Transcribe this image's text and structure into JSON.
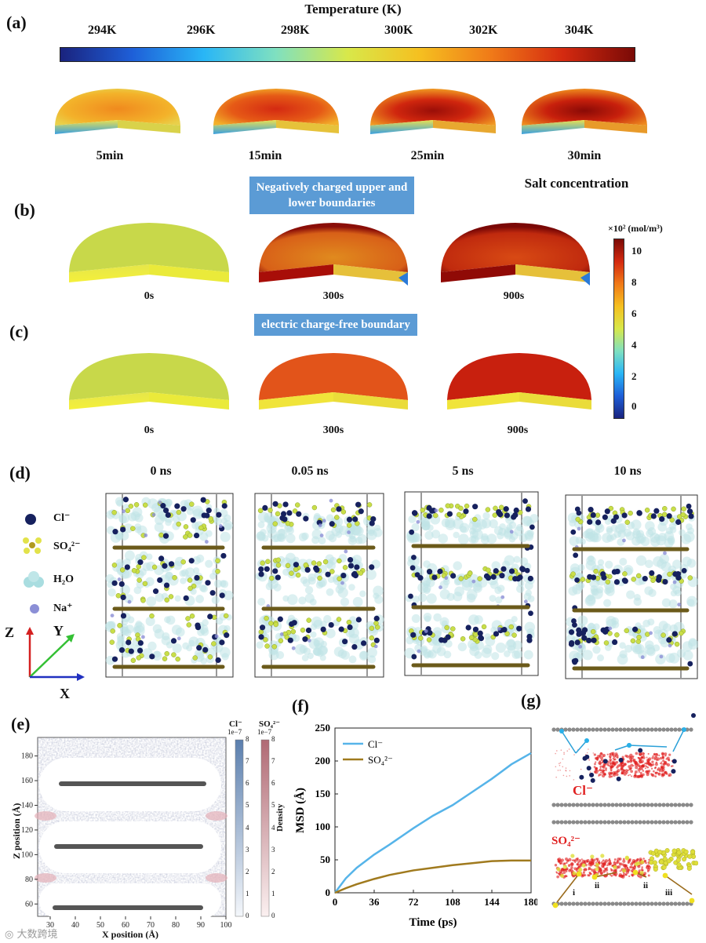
{
  "panel_a": {
    "label": "(a)",
    "colorbar_title": "Temperature (K)",
    "colorbar_ticks": [
      "294K",
      "296K",
      "298K",
      "300K",
      "302K",
      "304K"
    ],
    "times": [
      "5min",
      "15min",
      "25min",
      "30min"
    ]
  },
  "panel_b": {
    "label": "(b)",
    "condition": "Negatively charged upper and lower boundaries",
    "times": [
      "0s",
      "300s",
      "900s"
    ]
  },
  "panel_c": {
    "label": "(c)",
    "condition": "electric charge-free boundary",
    "times": [
      "0s",
      "300s",
      "900s"
    ]
  },
  "salt_colorbar": {
    "title": "Salt concentration",
    "unit": "×10² (mol/m³)",
    "ticks": [
      "10",
      "8",
      "6",
      "4",
      "2",
      "0"
    ]
  },
  "panel_d": {
    "label": "(d)",
    "times": [
      "0 ns",
      "0.05 ns",
      "5 ns",
      "10 ns"
    ],
    "legend": [
      {
        "name": "Cl⁻",
        "color": "#16215e"
      },
      {
        "name": "SO₄²⁻",
        "color": "#d8d84a"
      },
      {
        "name": "H₂O",
        "color": "#a9dde0"
      },
      {
        "name": "Na⁺",
        "color": "#8b8fd6"
      }
    ],
    "axes": [
      "Z",
      "Y",
      "X"
    ]
  },
  "panel_e": {
    "label": "(e)",
    "xlabel": "X position (Å)",
    "ylabel": "Z position (Å)",
    "xticks": [
      "30",
      "40",
      "50",
      "60",
      "70",
      "80",
      "90",
      "100"
    ],
    "yticks": [
      "60",
      "80",
      "100",
      "120",
      "140",
      "160",
      "180"
    ],
    "cbar1_title": "Cl⁻",
    "cbar2_title": "SO₄²⁻",
    "cbar_scale": "1e−7",
    "cbar_ticks": [
      "8",
      "7",
      "6",
      "5",
      "4",
      "3",
      "2",
      "1",
      "0"
    ],
    "cbar_label": "Density"
  },
  "panel_f": {
    "label": "(f)",
    "chart_data": {
      "type": "line",
      "xlabel": "Time (ps)",
      "ylabel": "MSD (Å)",
      "xlim": [
        0,
        180
      ],
      "ylim": [
        0,
        250
      ],
      "xticks": [
        0,
        36,
        72,
        108,
        144,
        180
      ],
      "yticks": [
        0,
        50,
        100,
        150,
        200,
        250
      ],
      "series": [
        {
          "name": "Cl⁻",
          "color": "#56b4e9",
          "x": [
            0,
            10,
            20,
            36,
            50,
            72,
            90,
            108,
            126,
            144,
            162,
            180
          ],
          "y": [
            0,
            22,
            38,
            58,
            73,
            98,
            117,
            133,
            153,
            173,
            195,
            212
          ]
        },
        {
          "name": "SO₄²⁻",
          "color": "#a07a1e",
          "x": [
            0,
            10,
            20,
            36,
            50,
            72,
            90,
            108,
            126,
            144,
            162,
            180
          ],
          "y": [
            0,
            7,
            13,
            21,
            27,
            34,
            38,
            42,
            45,
            48,
            49,
            49
          ]
        }
      ]
    }
  },
  "panel_g": {
    "label": "(g)",
    "ion_top": "Cl⁻",
    "ion_bottom": "SO₄²⁻",
    "path_labels": [
      "i",
      "ii",
      "ii",
      "iii"
    ]
  },
  "watermark": "大数跨境"
}
